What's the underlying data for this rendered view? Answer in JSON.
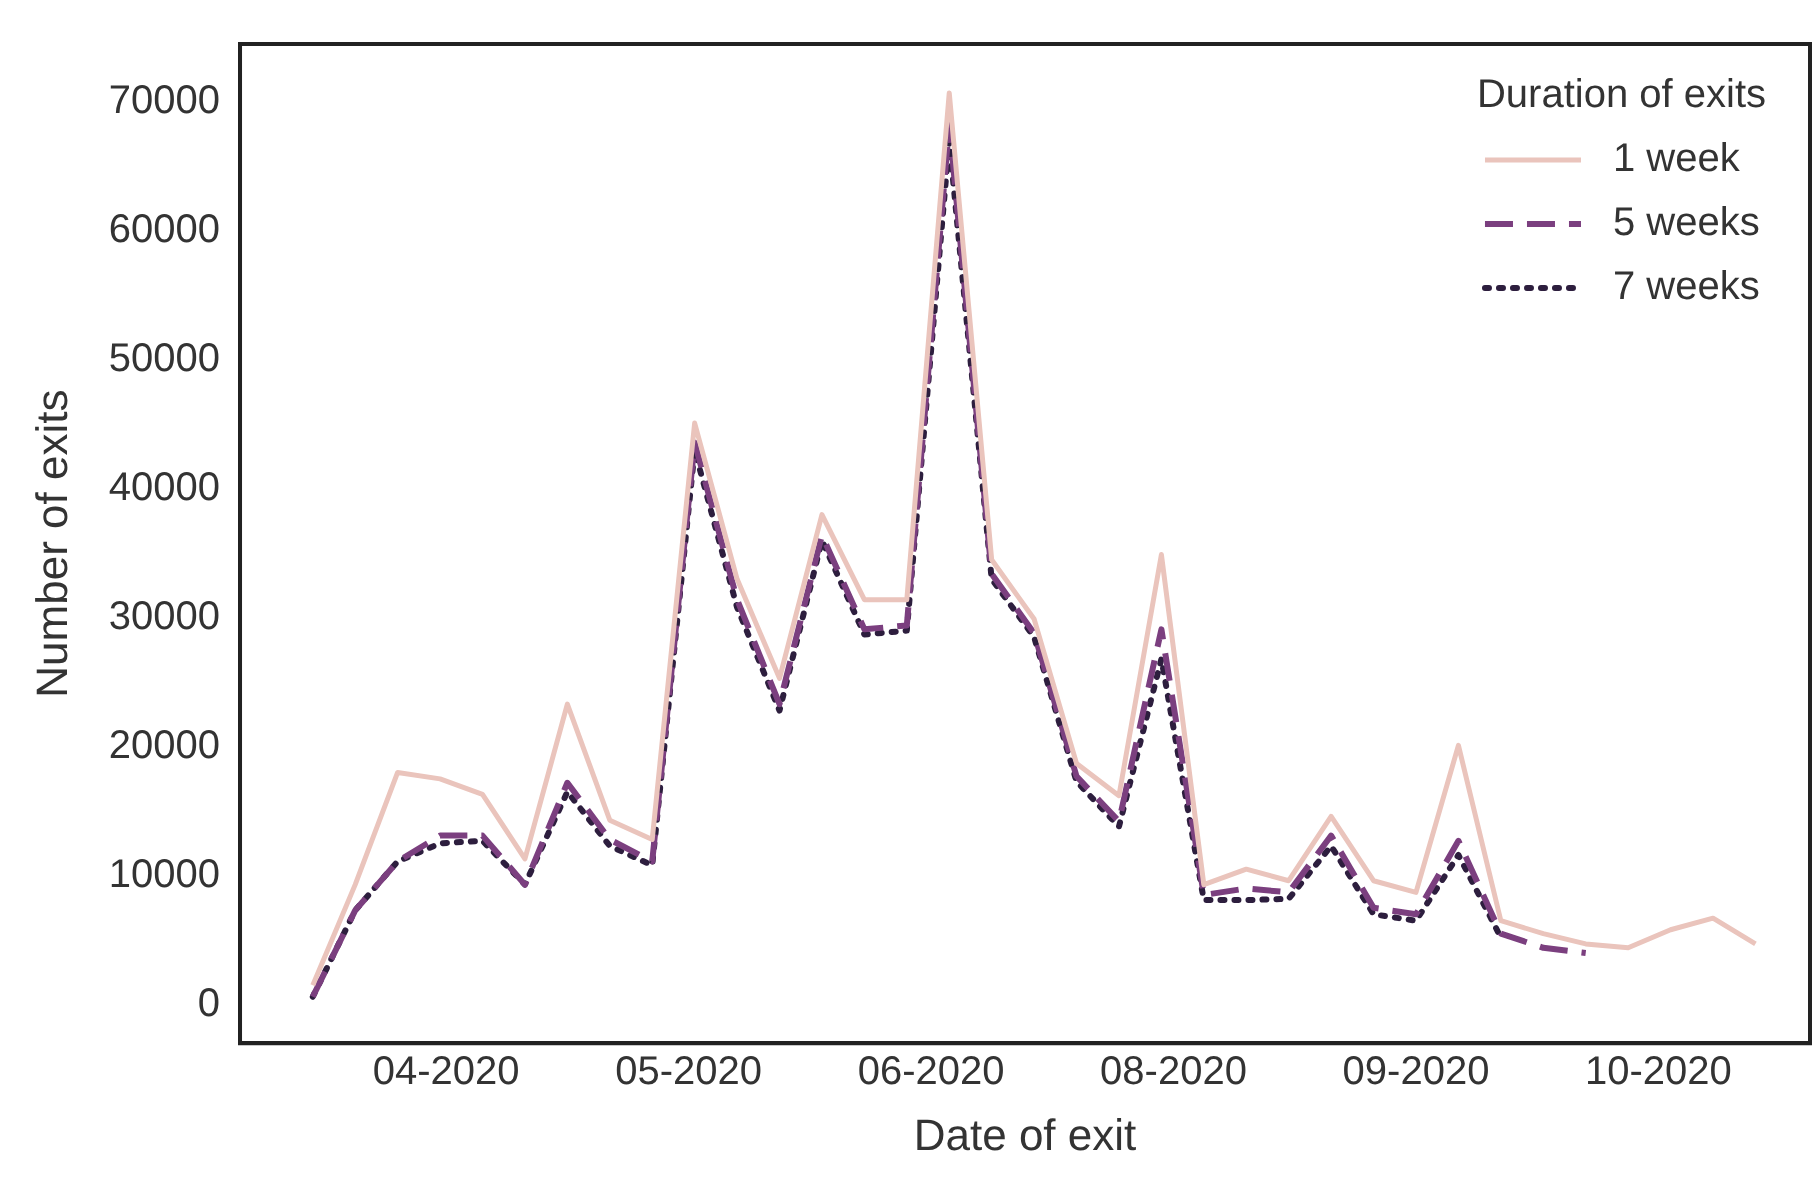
{
  "chart_data": {
    "type": "line",
    "xlabel": "Date of exit",
    "ylabel": "Number of exits",
    "legend_title": "Duration of exits",
    "legend": "top right",
    "grid": false,
    "marker": "none",
    "x": [
      "2020-03-15",
      "2020-03-22",
      "2020-03-29",
      "2020-04-05",
      "2020-04-12",
      "2020-04-19",
      "2020-04-26",
      "2020-05-03",
      "2020-05-10",
      "2020-05-17",
      "2020-05-24",
      "2020-05-31",
      "2020-06-07",
      "2020-06-14",
      "2020-06-21",
      "2020-06-28",
      "2020-07-05",
      "2020-07-12",
      "2020-07-19",
      "2020-07-26",
      "2020-08-02",
      "2020-08-09",
      "2020-08-16",
      "2020-08-23",
      "2020-08-30",
      "2020-09-06",
      "2020-09-13",
      "2020-09-20",
      "2020-09-27",
      "2020-10-04",
      "2020-10-11",
      "2020-10-18",
      "2020-10-25",
      "2020-11-01",
      "2020-11-08"
    ],
    "xlim": [
      "2020-03-03",
      "2020-11-17"
    ],
    "xticks": [
      {
        "value": "2020-04-06",
        "label": "04-2020"
      },
      {
        "value": "2020-05-16",
        "label": "05-2020"
      },
      {
        "value": "2020-06-25",
        "label": "06-2020"
      },
      {
        "value": "2020-08-04",
        "label": "08-2020"
      },
      {
        "value": "2020-09-13",
        "label": "09-2020"
      },
      {
        "value": "2020-10-23",
        "label": "10-2020"
      }
    ],
    "ylim": [
      -3000,
      74500
    ],
    "yticks": [
      0,
      10000,
      20000,
      30000,
      40000,
      50000,
      60000,
      70000
    ],
    "series": [
      {
        "name": "1 week",
        "color": "#eac4bc",
        "line_style": "solid",
        "values": [
          1500,
          9300,
          18000,
          17500,
          16300,
          11300,
          23300,
          14300,
          12800,
          45100,
          33000,
          25300,
          38000,
          31400,
          31400,
          70700,
          34500,
          29900,
          18700,
          16200,
          34900,
          9300,
          10500,
          9600,
          14600,
          9600,
          8700,
          20100,
          6500,
          5500,
          4700,
          4400,
          5800,
          6700,
          4700
        ]
      },
      {
        "name": "5 weeks",
        "color": "#7b3f7f",
        "line_style": "dashed",
        "values": [
          600,
          7300,
          11100,
          13100,
          13100,
          9300,
          17200,
          12800,
          11100,
          43600,
          31400,
          23300,
          36400,
          29100,
          29400,
          68300,
          33400,
          28800,
          17700,
          14200,
          29100,
          8500,
          9000,
          8700,
          13100,
          7500,
          7000,
          12700,
          5500,
          4400,
          4000,
          null,
          null,
          null,
          null
        ]
      },
      {
        "name": "7 weeks",
        "color": "#2d1e3e",
        "line_style": "dotted",
        "values": [
          600,
          7300,
          11100,
          12500,
          12700,
          9300,
          16500,
          12300,
          10800,
          43000,
          30800,
          22800,
          36000,
          28700,
          29000,
          67000,
          33000,
          28500,
          17300,
          13800,
          26800,
          8100,
          8100,
          8200,
          12300,
          7000,
          6500,
          11600,
          5200,
          null,
          null,
          null,
          null,
          null,
          null
        ]
      }
    ]
  }
}
